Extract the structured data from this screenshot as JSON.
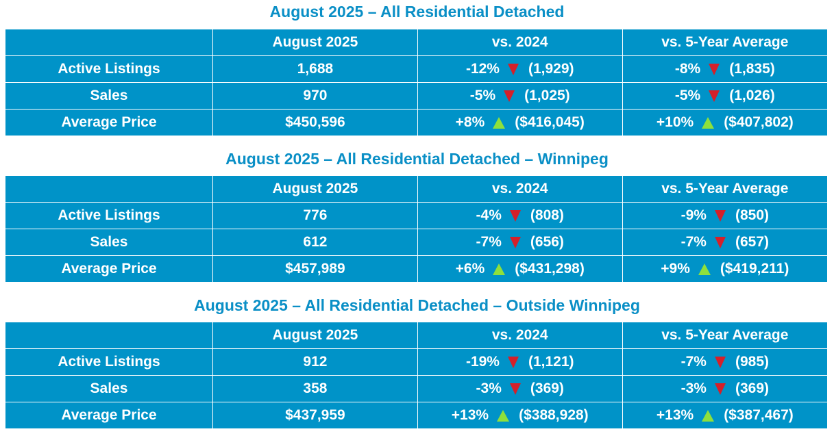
{
  "columns": [
    "",
    "August 2025",
    "vs. 2024",
    "vs. 5-Year Average"
  ],
  "colors": {
    "table_bg": "#0093c8",
    "title": "#0a8fc6",
    "down": "#d4202a",
    "up": "#8ee03c"
  },
  "sections": [
    {
      "title": "August 2025 – All Residential Detached",
      "rows": [
        {
          "label": "Active Listings",
          "value": "1,688",
          "vs2024": {
            "pct": "-12%",
            "dir": "down",
            "prev": "(1,929)"
          },
          "vs5yr": {
            "pct": "-8%",
            "dir": "down",
            "prev": "(1,835)"
          }
        },
        {
          "label": "Sales",
          "value": "970",
          "vs2024": {
            "pct": "-5%",
            "dir": "down",
            "prev": "(1,025)"
          },
          "vs5yr": {
            "pct": "-5%",
            "dir": "down",
            "prev": "(1,026)"
          }
        },
        {
          "label": "Average Price",
          "value": "$450,596",
          "vs2024": {
            "pct": "+8%",
            "dir": "up",
            "prev": "($416,045)"
          },
          "vs5yr": {
            "pct": "+10%",
            "dir": "up",
            "prev": "($407,802)"
          }
        }
      ]
    },
    {
      "title": "August 2025 – All Residential Detached – Winnipeg",
      "rows": [
        {
          "label": "Active Listings",
          "value": "776",
          "vs2024": {
            "pct": "-4%",
            "dir": "down",
            "prev": "(808)"
          },
          "vs5yr": {
            "pct": "-9%",
            "dir": "down",
            "prev": "(850)"
          }
        },
        {
          "label": "Sales",
          "value": "612",
          "vs2024": {
            "pct": "-7%",
            "dir": "down",
            "prev": "(656)"
          },
          "vs5yr": {
            "pct": "-7%",
            "dir": "down",
            "prev": "(657)"
          }
        },
        {
          "label": "Average Price",
          "value": "$457,989",
          "vs2024": {
            "pct": "+6%",
            "dir": "up",
            "prev": "($431,298)"
          },
          "vs5yr": {
            "pct": "+9%",
            "dir": "up",
            "prev": "($419,211)"
          }
        }
      ]
    },
    {
      "title": "August 2025 – All Residential Detached – Outside Winnipeg",
      "rows": [
        {
          "label": "Active Listings",
          "value": "912",
          "vs2024": {
            "pct": "-19%",
            "dir": "down",
            "prev": "(1,121)"
          },
          "vs5yr": {
            "pct": "-7%",
            "dir": "down",
            "prev": "(985)"
          }
        },
        {
          "label": "Sales",
          "value": "358",
          "vs2024": {
            "pct": "-3%",
            "dir": "down",
            "prev": "(369)"
          },
          "vs5yr": {
            "pct": "-3%",
            "dir": "down",
            "prev": "(369)"
          }
        },
        {
          "label": "Average Price",
          "value": "$437,959",
          "vs2024": {
            "pct": "+13%",
            "dir": "up",
            "prev": "($388,928)"
          },
          "vs5yr": {
            "pct": "+13%",
            "dir": "up",
            "prev": "($387,467)"
          }
        }
      ]
    }
  ]
}
